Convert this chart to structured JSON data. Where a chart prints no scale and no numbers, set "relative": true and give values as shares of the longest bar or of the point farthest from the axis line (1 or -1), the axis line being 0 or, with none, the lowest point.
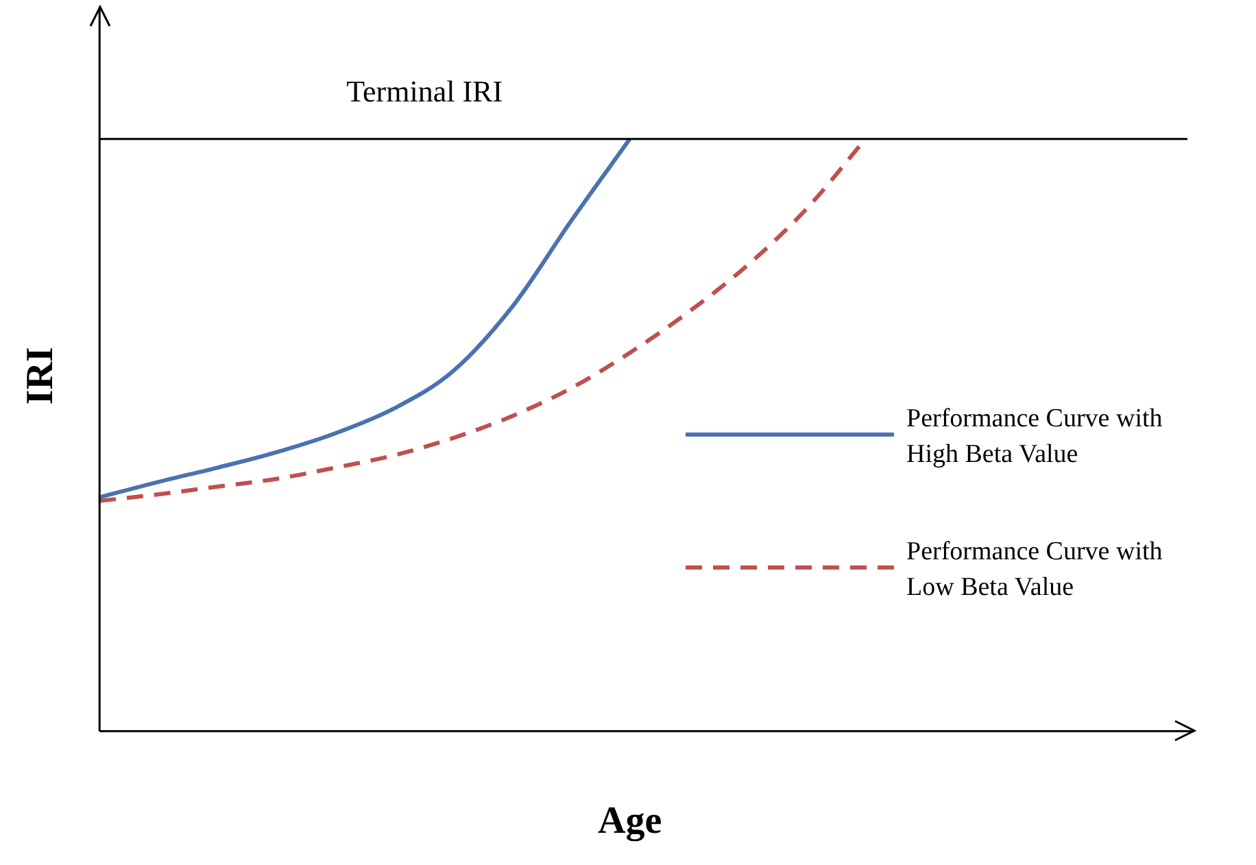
{
  "chart_data": {
    "type": "line",
    "relative": true,
    "xlabel": "Age",
    "ylabel": "IRI",
    "categories": [
      null,
      null,
      null,
      null,
      null,
      null,
      null,
      null,
      null,
      null,
      null,
      null,
      null,
      null,
      null,
      null,
      null,
      null,
      null
    ],
    "series": [
      {
        "name": "Performance Curve with High Beta Value",
        "color": "#4a72b0",
        "line_style": "solid",
        "values": [
          0.395,
          0.421,
          0.445,
          0.471,
          0.503,
          0.545,
          0.608,
          0.716,
          0.861,
          1,
          null,
          null,
          null,
          null,
          null,
          null,
          null,
          null,
          null
        ]
      },
      {
        "name": "Performance Curve with Low Beta Value",
        "color": "#c0504d",
        "line_style": "dashed",
        "values": [
          0.389,
          0.4,
          0.413,
          0.426,
          0.445,
          0.466,
          0.495,
          0.532,
          0.579,
          0.639,
          0.708,
          0.787,
          0.882,
          1,
          null,
          null,
          null,
          null,
          null
        ]
      }
    ],
    "ref_lines": [
      {
        "axis": "y",
        "value": 1,
        "label": "Terminal IRI",
        "color": "#000000"
      }
    ],
    "legend": "right",
    "grid": false,
    "marker": "none"
  }
}
